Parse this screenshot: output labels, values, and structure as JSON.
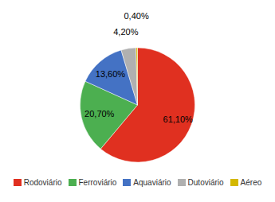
{
  "chart_data": {
    "type": "pie",
    "categories": [
      "Rodoviário",
      "Ferroviário",
      "Aquaviário",
      "Dutoviário",
      "Aéreo"
    ],
    "values": [
      61.1,
      20.7,
      13.6,
      4.2,
      0.4
    ],
    "value_labels": [
      "61,10%",
      "20,70%",
      "13,60%",
      "4,20%",
      "0,40%"
    ],
    "colors": [
      "#e03020",
      "#4caf50",
      "#4472c4",
      "#b0b0b0",
      "#d4b800"
    ],
    "data_labels": true,
    "legend": "bottom"
  }
}
